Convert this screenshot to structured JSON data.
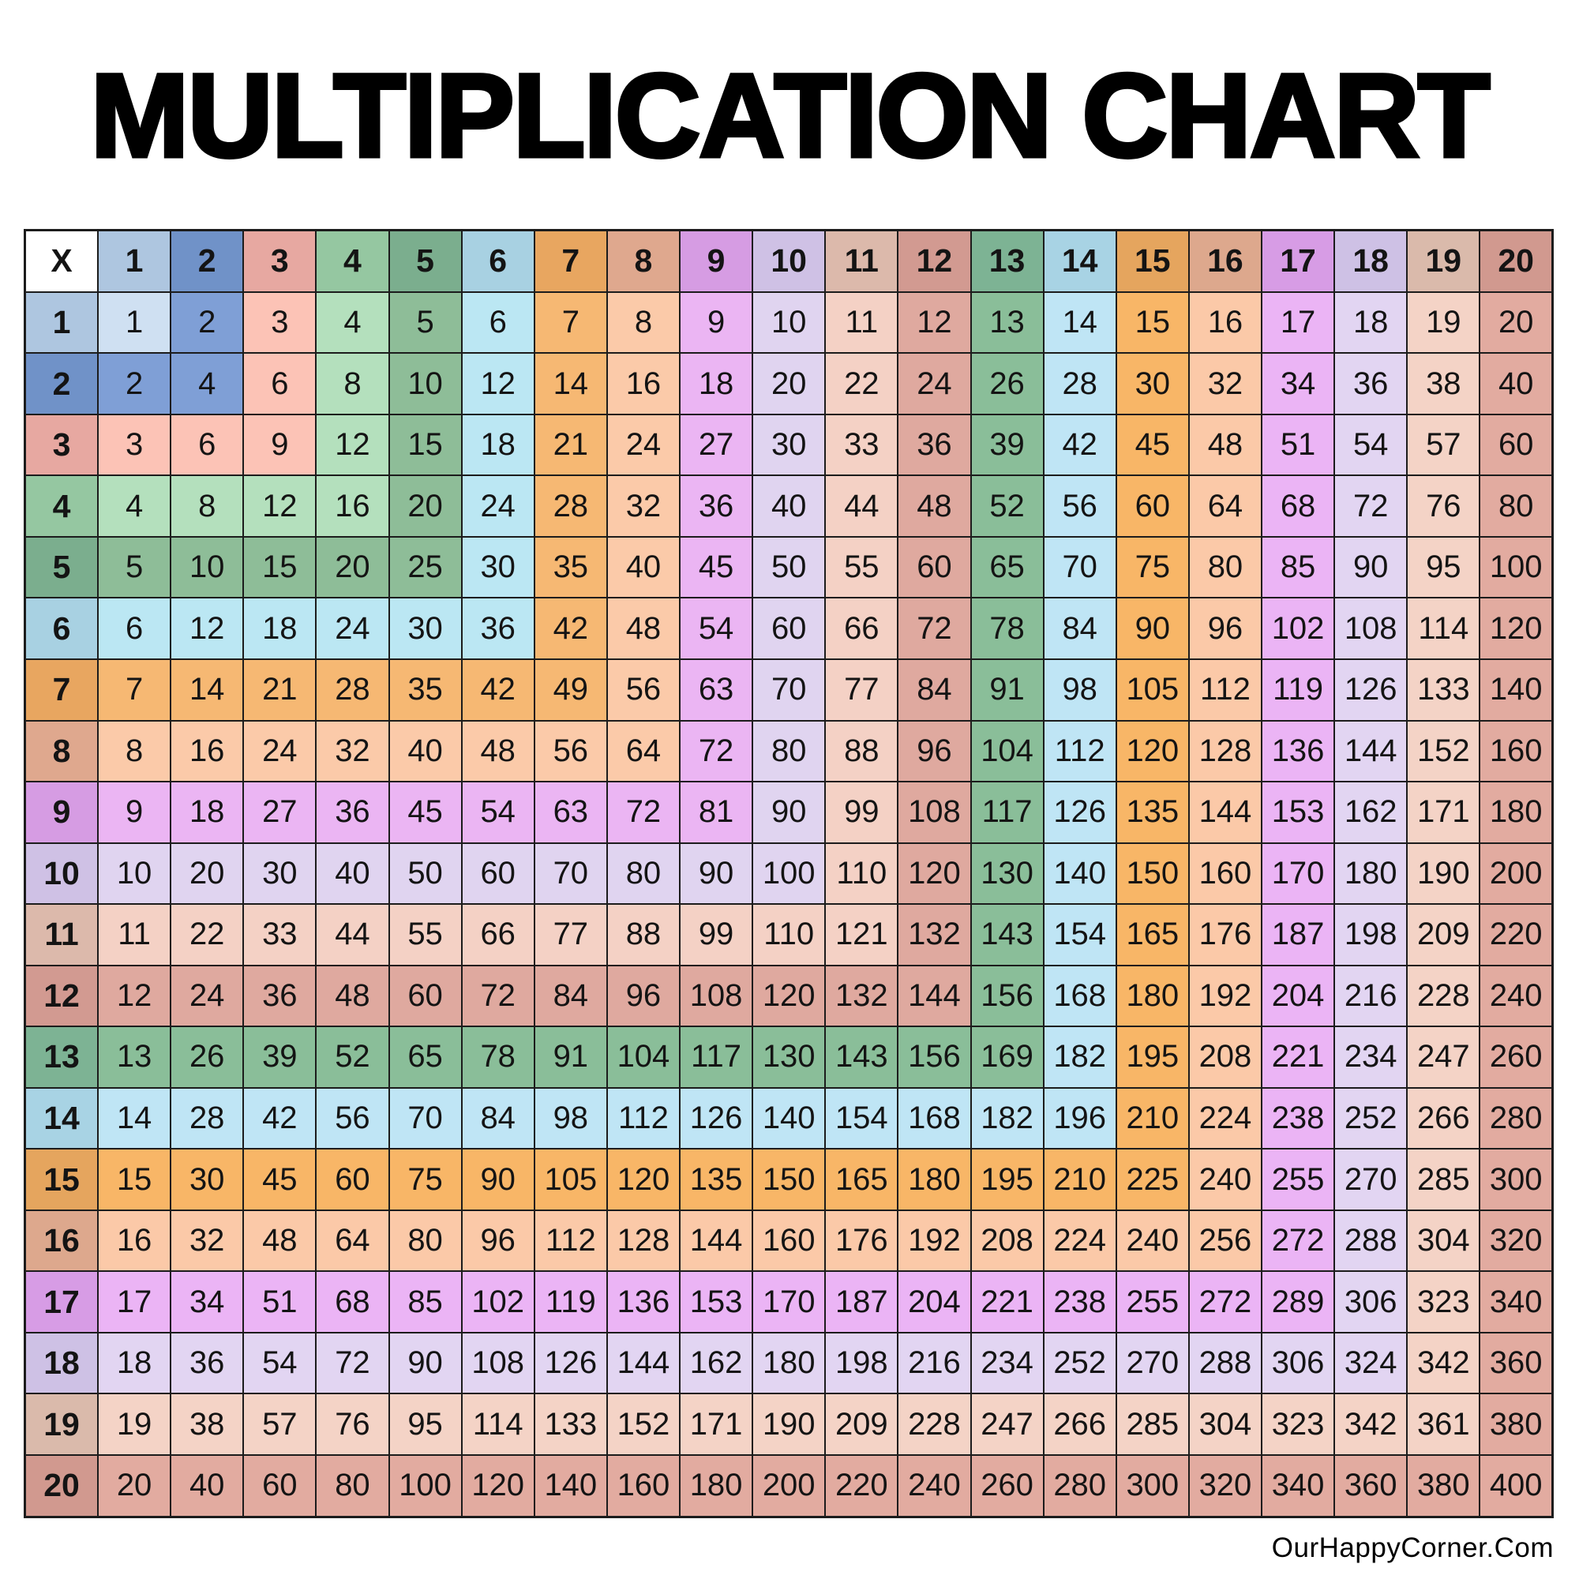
{
  "title": "MULTIPLICATION CHART",
  "footer": {
    "text": "OurHappyCorner.Com"
  },
  "chart_data": {
    "type": "table",
    "title": "MULTIPLICATION CHART",
    "corner_label": "X",
    "column_headers": [
      1,
      2,
      3,
      4,
      5,
      6,
      7,
      8,
      9,
      10,
      11,
      12,
      13,
      14,
      15,
      16,
      17,
      18,
      19,
      20
    ],
    "row_headers": [
      1,
      2,
      3,
      4,
      5,
      6,
      7,
      8,
      9,
      10,
      11,
      12,
      13,
      14,
      15,
      16,
      17,
      18,
      19,
      20
    ],
    "rows": [
      [
        1,
        2,
        3,
        4,
        5,
        6,
        7,
        8,
        9,
        10,
        11,
        12,
        13,
        14,
        15,
        16,
        17,
        18,
        19,
        20
      ],
      [
        2,
        4,
        6,
        8,
        10,
        12,
        14,
        16,
        18,
        20,
        22,
        24,
        26,
        28,
        30,
        32,
        34,
        36,
        38,
        40
      ],
      [
        3,
        6,
        9,
        12,
        15,
        18,
        21,
        24,
        27,
        30,
        33,
        36,
        39,
        42,
        45,
        48,
        51,
        54,
        57,
        60
      ],
      [
        4,
        8,
        12,
        16,
        20,
        24,
        28,
        32,
        36,
        40,
        44,
        48,
        52,
        56,
        60,
        64,
        68,
        72,
        76,
        80
      ],
      [
        5,
        10,
        15,
        20,
        25,
        30,
        35,
        40,
        45,
        50,
        55,
        60,
        65,
        70,
        75,
        80,
        85,
        90,
        95,
        100
      ],
      [
        6,
        12,
        18,
        24,
        30,
        36,
        42,
        48,
        54,
        60,
        66,
        72,
        78,
        84,
        90,
        96,
        102,
        108,
        114,
        120
      ],
      [
        7,
        14,
        21,
        28,
        35,
        42,
        49,
        56,
        63,
        70,
        77,
        84,
        91,
        98,
        105,
        112,
        119,
        126,
        133,
        140
      ],
      [
        8,
        16,
        24,
        32,
        40,
        48,
        56,
        64,
        72,
        80,
        88,
        96,
        104,
        112,
        120,
        128,
        136,
        144,
        152,
        160
      ],
      [
        9,
        18,
        27,
        36,
        45,
        54,
        63,
        72,
        81,
        90,
        99,
        108,
        117,
        126,
        135,
        144,
        153,
        162,
        171,
        180
      ],
      [
        10,
        20,
        30,
        40,
        50,
        60,
        70,
        80,
        90,
        100,
        110,
        120,
        130,
        140,
        150,
        160,
        170,
        180,
        190,
        200
      ],
      [
        11,
        22,
        33,
        44,
        55,
        66,
        77,
        88,
        99,
        110,
        121,
        132,
        143,
        154,
        165,
        176,
        187,
        198,
        209,
        220
      ],
      [
        12,
        24,
        36,
        48,
        60,
        72,
        84,
        96,
        108,
        120,
        132,
        144,
        156,
        168,
        180,
        192,
        204,
        216,
        228,
        240
      ],
      [
        13,
        26,
        39,
        52,
        65,
        78,
        91,
        104,
        117,
        130,
        143,
        156,
        169,
        182,
        195,
        208,
        221,
        234,
        247,
        260
      ],
      [
        14,
        28,
        42,
        56,
        70,
        84,
        98,
        112,
        126,
        140,
        154,
        168,
        182,
        196,
        210,
        224,
        238,
        252,
        266,
        280
      ],
      [
        15,
        30,
        45,
        60,
        75,
        90,
        105,
        120,
        135,
        150,
        165,
        180,
        195,
        210,
        225,
        240,
        255,
        270,
        285,
        300
      ],
      [
        16,
        32,
        48,
        64,
        80,
        96,
        112,
        128,
        144,
        160,
        176,
        192,
        208,
        224,
        240,
        256,
        272,
        288,
        304,
        320
      ],
      [
        17,
        34,
        51,
        68,
        85,
        102,
        119,
        136,
        153,
        170,
        187,
        204,
        221,
        238,
        255,
        272,
        289,
        306,
        323,
        340
      ],
      [
        18,
        36,
        54,
        72,
        90,
        108,
        126,
        144,
        162,
        180,
        198,
        216,
        234,
        252,
        270,
        288,
        306,
        324,
        342,
        360
      ],
      [
        19,
        38,
        57,
        76,
        95,
        114,
        133,
        152,
        171,
        190,
        209,
        228,
        247,
        266,
        285,
        304,
        323,
        342,
        361,
        380
      ],
      [
        20,
        40,
        60,
        80,
        100,
        120,
        140,
        160,
        180,
        200,
        220,
        240,
        260,
        280,
        300,
        320,
        340,
        360,
        380,
        400
      ]
    ],
    "coloring_rule": "cell (r,c) uses cell_palette color of max(r,c); header row and header column use header_palette of their own number",
    "corner_bg": "#ffffff",
    "border_color": "#1c1c1c",
    "text_color": "#141414",
    "header_palette": [
      "#aec6e0",
      "#7092c8",
      "#e7a8a1",
      "#95c7a1",
      "#7bae8e",
      "#a8d1e2",
      "#e8a660",
      "#dfa88e",
      "#d69ce3",
      "#cfc1e5",
      "#dcb9ab",
      "#d29a91",
      "#7db394",
      "#a8d3e4",
      "#e5a55e",
      "#dda88d",
      "#d79ce5",
      "#cec1e5",
      "#dabaab",
      "#d1998f"
    ],
    "cell_palette": [
      "#cfe0f2",
      "#7f9fd6",
      "#fcc3b6",
      "#b4e0bd",
      "#8ebd98",
      "#bbe7f3",
      "#f6b873",
      "#fbcaa9",
      "#ebb5f3",
      "#e0d4f0",
      "#f4d1c5",
      "#dfa99f",
      "#8abe99",
      "#bfe5f5",
      "#f8b667",
      "#fbc9a8",
      "#ebb4f5",
      "#e2d5f2",
      "#f4d3c6",
      "#e2aba0"
    ]
  }
}
